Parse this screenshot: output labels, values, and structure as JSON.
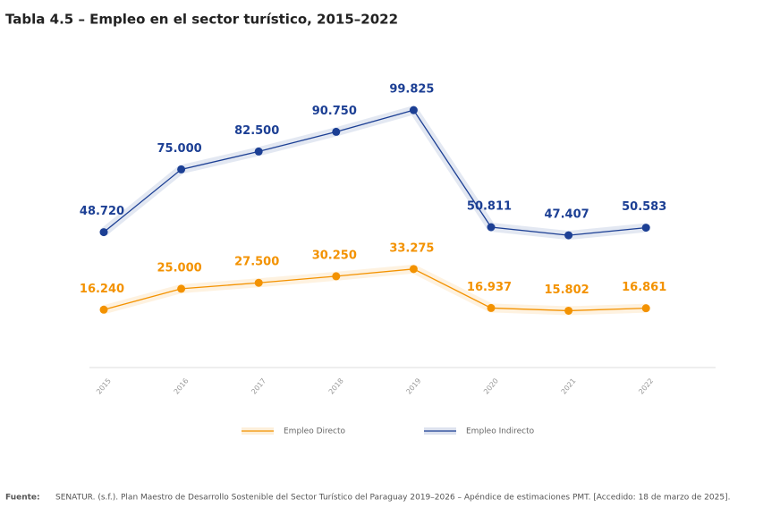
{
  "chart_data": {
    "type": "line",
    "title": "Tabla 4.5 – Empleo en el sector turístico, 2015–2022",
    "categories": [
      "2015",
      "2016",
      "2017",
      "2018",
      "2019",
      "2020",
      "2021",
      "2022"
    ],
    "series": [
      {
        "name": "Empleo Directo",
        "color": "#f39200",
        "values": [
          16240,
          25000,
          27500,
          30250,
          33275,
          16937,
          15802,
          16861
        ],
        "value_labels": [
          "16.240",
          "25.000",
          "27.500",
          "30.250",
          "33.275",
          "16.937",
          "15.802",
          "16.861"
        ]
      },
      {
        "name": "Empleo Indirecto",
        "color": "#1c3f94",
        "values": [
          48720,
          75000,
          82500,
          90750,
          99825,
          50811,
          47407,
          50583
        ],
        "value_labels": [
          "48.720",
          "75.000",
          "82.500",
          "90.750",
          "99.825",
          "50.811",
          "47.407",
          "50.583"
        ]
      }
    ],
    "ylim": [
      -8000,
      110000
    ],
    "legend": "bottom",
    "source_label": "Fuente:",
    "source": "SENATUR. (s.f.). Plan Maestro de Desarrollo Sostenible del Sector Turístico del Paraguay 2019–2026 – Apéndice de estimaciones PMT. [Accedido: 18 de marzo de 2025]."
  }
}
